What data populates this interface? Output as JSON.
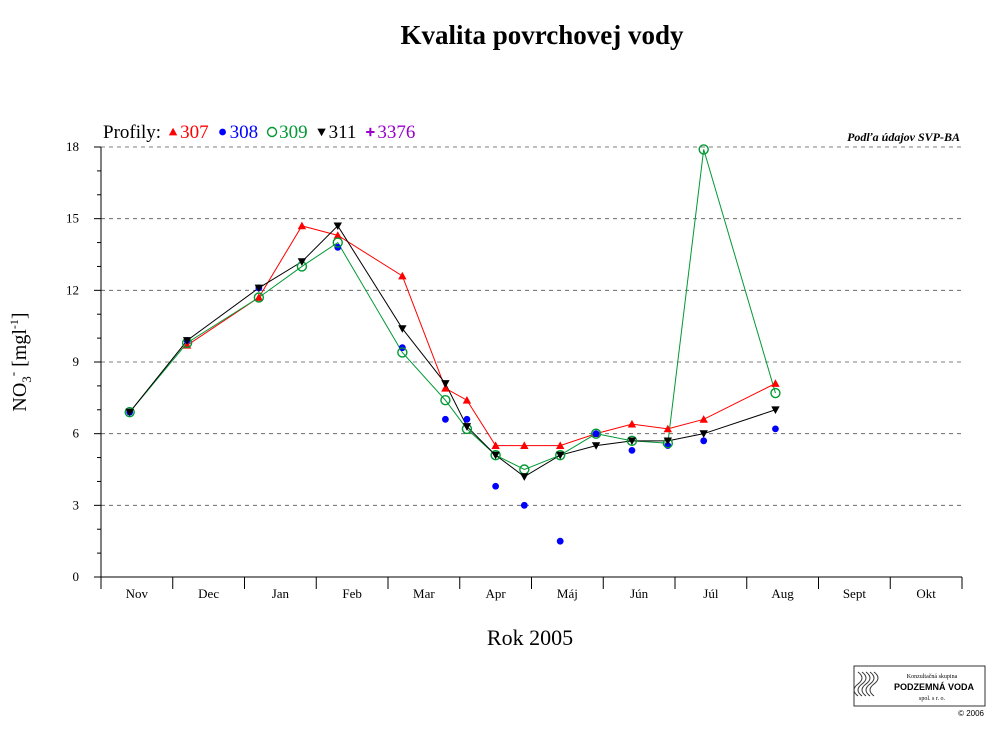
{
  "chart_data": {
    "type": "line",
    "title": "Kvalita povrchovej vody",
    "xlabel": "Rok 2005",
    "ylabel": {
      "main": "NO",
      "sub": "3",
      "sup": "-",
      "unit_open": "[mgl",
      "unit_sup": "-1",
      "unit_close": "]"
    },
    "source_note": "Podľa údajov SVP-BA",
    "legend_prefix": "Profily:",
    "categories": [
      "Nov",
      "Dec",
      "Jan",
      "Feb",
      "Mar",
      "Apr",
      "Máj",
      "Jún",
      "Júl",
      "Aug",
      "Sept",
      "Okt"
    ],
    "ylim": [
      0,
      18
    ],
    "yticks": [
      0,
      3,
      6,
      9,
      12,
      15,
      18
    ],
    "grid": "dashed horizontal",
    "legend_position": "top-left",
    "series": [
      {
        "name": "307",
        "color": "#ff0000",
        "marker": "triangle-up",
        "connected": true,
        "points": [
          [
            0.7,
            9.7
          ],
          [
            1.7,
            11.7
          ],
          [
            2.3,
            14.7
          ],
          [
            2.8,
            14.3
          ],
          [
            3.7,
            12.6
          ],
          [
            4.3,
            7.9
          ],
          [
            4.6,
            7.4
          ],
          [
            5.0,
            5.5
          ],
          [
            5.4,
            5.5
          ],
          [
            5.9,
            5.5
          ],
          [
            6.4,
            6.0
          ],
          [
            6.9,
            6.4
          ],
          [
            7.4,
            6.2
          ],
          [
            7.9,
            6.6
          ],
          [
            8.9,
            8.1
          ]
        ]
      },
      {
        "name": "308",
        "color": "#0000ff",
        "marker": "circle-filled",
        "connected": false,
        "points": [
          [
            -0.1,
            6.9
          ],
          [
            0.7,
            9.9
          ],
          [
            1.7,
            12.1
          ],
          [
            2.8,
            13.8
          ],
          [
            3.7,
            9.6
          ],
          [
            4.3,
            6.6
          ],
          [
            4.6,
            6.6
          ],
          [
            5.0,
            3.8
          ],
          [
            5.4,
            3.0
          ],
          [
            5.9,
            1.5
          ],
          [
            6.4,
            6.0
          ],
          [
            6.9,
            5.3
          ],
          [
            7.4,
            5.5
          ],
          [
            7.9,
            5.7
          ],
          [
            8.9,
            6.2
          ]
        ]
      },
      {
        "name": "309",
        "color": "#009933",
        "marker": "circle-open",
        "connected": true,
        "points": [
          [
            -0.1,
            6.9
          ],
          [
            0.7,
            9.8
          ],
          [
            1.7,
            11.7
          ],
          [
            2.3,
            13.0
          ],
          [
            2.8,
            14.0
          ],
          [
            3.7,
            9.4
          ],
          [
            4.3,
            7.4
          ],
          [
            4.6,
            6.2
          ],
          [
            5.0,
            5.1
          ],
          [
            5.4,
            4.5
          ],
          [
            5.9,
            5.1
          ],
          [
            6.4,
            6.0
          ],
          [
            6.9,
            5.7
          ],
          [
            7.4,
            5.6
          ],
          [
            7.9,
            17.9
          ],
          [
            8.9,
            7.7
          ]
        ]
      },
      {
        "name": "311",
        "color": "#000000",
        "marker": "triangle-down",
        "connected": true,
        "points": [
          [
            -0.1,
            6.9
          ],
          [
            0.7,
            9.9
          ],
          [
            1.7,
            12.1
          ],
          [
            2.3,
            13.2
          ],
          [
            2.8,
            14.7
          ],
          [
            3.7,
            10.4
          ],
          [
            4.3,
            8.1
          ],
          [
            4.6,
            6.3
          ],
          [
            5.0,
            5.1
          ],
          [
            5.4,
            4.2
          ],
          [
            5.9,
            5.1
          ],
          [
            6.4,
            5.5
          ],
          [
            6.9,
            5.7
          ],
          [
            7.4,
            5.7
          ],
          [
            7.9,
            6.0
          ],
          [
            8.9,
            7.0
          ]
        ]
      },
      {
        "name": "3376",
        "color": "#9900cc",
        "marker": "plus",
        "connected": false,
        "points": []
      }
    ]
  },
  "logo": {
    "line1": "Konzultačná skupina",
    "line2": "PODZEMNÁ VODA",
    "line3": "spol. s r. o.",
    "copyright": "© 2006"
  }
}
